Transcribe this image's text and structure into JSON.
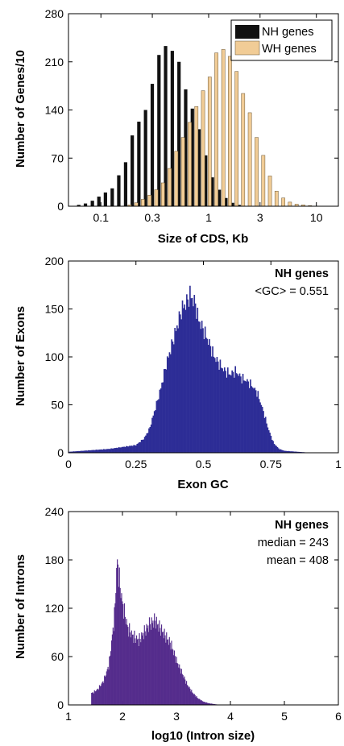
{
  "chart_data": [
    {
      "type": "bar",
      "xscale": "log",
      "xlabel": "Size of CDS, Kb",
      "ylabel": "Number of Genes/10",
      "xlim": [
        0.05,
        16
      ],
      "ylim": [
        0,
        280
      ],
      "xticks": [
        "0.1",
        "0.3",
        "1",
        "3",
        "10"
      ],
      "yticks": [
        "0",
        "70",
        "140",
        "210",
        "280"
      ],
      "legend_position": "top-right",
      "series": [
        {
          "name": "NH genes",
          "color": "#111111",
          "x": [
            0.065,
            0.075,
            0.087,
            0.1,
            0.115,
            0.133,
            0.153,
            0.177,
            0.204,
            0.235,
            0.271,
            0.313,
            0.361,
            0.416,
            0.48,
            0.554,
            0.639,
            0.737,
            0.85,
            0.98,
            1.13,
            1.31,
            1.51,
            1.74,
            2.0
          ],
          "values": [
            2,
            4,
            8,
            14,
            20,
            26,
            45,
            64,
            103,
            123,
            140,
            178,
            220,
            233,
            226,
            210,
            170,
            142,
            112,
            74,
            42,
            24,
            12,
            5,
            2
          ]
        },
        {
          "name": "WH genes",
          "color": "#f1cc96",
          "x": [
            0.177,
            0.204,
            0.235,
            0.271,
            0.313,
            0.361,
            0.416,
            0.48,
            0.554,
            0.639,
            0.737,
            0.85,
            0.98,
            1.13,
            1.31,
            1.51,
            1.74,
            2.0,
            2.31,
            2.67,
            3.08,
            3.55,
            4.09,
            4.72,
            5.44,
            6.28,
            7.24,
            8.35
          ],
          "values": [
            2,
            5,
            10,
            16,
            24,
            34,
            55,
            80,
            100,
            122,
            145,
            168,
            188,
            223,
            228,
            218,
            196,
            164,
            136,
            100,
            74,
            44,
            22,
            12,
            6,
            3,
            2,
            1
          ]
        }
      ]
    },
    {
      "type": "bar",
      "xlabel": "Exon GC",
      "ylabel": "Number of Exons",
      "xlim": [
        0,
        1
      ],
      "ylim": [
        0,
        200
      ],
      "xticks": [
        "0",
        "0.25",
        "0.5",
        "0.75",
        "1"
      ],
      "yticks": [
        "0",
        "50",
        "100",
        "150",
        "200"
      ],
      "color": "#2d2d96",
      "series": [
        {
          "name": "NH genes",
          "x": [
            0.0,
            0.05,
            0.1,
            0.15,
            0.2,
            0.25,
            0.28,
            0.3,
            0.32,
            0.34,
            0.36,
            0.38,
            0.4,
            0.42,
            0.44,
            0.45,
            0.46,
            0.47,
            0.48,
            0.5,
            0.52,
            0.54,
            0.56,
            0.58,
            0.6,
            0.62,
            0.64,
            0.66,
            0.68,
            0.7,
            0.72,
            0.74,
            0.76,
            0.78,
            0.8,
            0.85,
            0.9,
            1.0
          ],
          "values": [
            1,
            2,
            3,
            4,
            6,
            8,
            15,
            25,
            45,
            65,
            90,
            110,
            130,
            150,
            158,
            165,
            160,
            155,
            140,
            128,
            115,
            100,
            92,
            85,
            82,
            85,
            78,
            75,
            70,
            62,
            45,
            25,
            10,
            4,
            2,
            1,
            0,
            0
          ]
        }
      ],
      "annotations": [
        "NH genes",
        "<GC> = 0.551"
      ]
    },
    {
      "type": "bar",
      "xlabel": "log10 (Intron size)",
      "ylabel": "Number of Introns",
      "xlim": [
        1,
        6
      ],
      "ylim": [
        0,
        240
      ],
      "xticks": [
        "1",
        "2",
        "3",
        "4",
        "5",
        "6"
      ],
      "yticks": [
        "0",
        "60",
        "120",
        "180",
        "240"
      ],
      "color": "#552c8c",
      "series": [
        {
          "name": "NH genes",
          "x": [
            1.45,
            1.55,
            1.65,
            1.75,
            1.85,
            1.9,
            1.95,
            2.0,
            2.1,
            2.2,
            2.3,
            2.4,
            2.5,
            2.6,
            2.7,
            2.8,
            2.9,
            3.0,
            3.1,
            3.2,
            3.3,
            3.4,
            3.5,
            3.6,
            3.7,
            3.8
          ],
          "values": [
            15,
            20,
            30,
            50,
            110,
            180,
            150,
            125,
            95,
            85,
            80,
            90,
            100,
            105,
            95,
            85,
            75,
            55,
            40,
            25,
            15,
            8,
            4,
            2,
            1,
            0
          ]
        }
      ],
      "annotations": [
        "NH genes",
        "median = 243",
        "mean = 408"
      ]
    }
  ]
}
